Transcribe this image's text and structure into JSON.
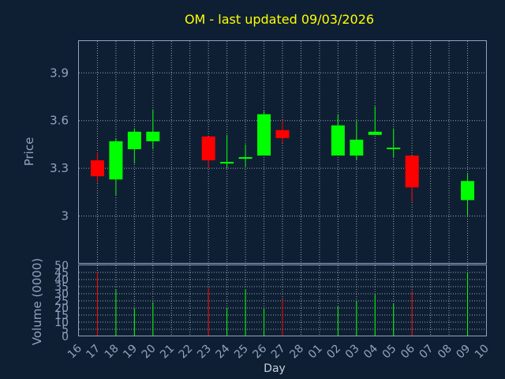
{
  "chart_data": {
    "type": "candlestick",
    "title": "OM - last updated 09/03/2026",
    "ylabel": "Price",
    "volume_label": "Volume (0000)",
    "xlabel": "Day",
    "ylim": [
      2.7,
      4.1
    ],
    "yticks": [
      3,
      3.3,
      3.6,
      3.9
    ],
    "ytick_labels": [
      "3",
      "3.3",
      "3.6",
      "3.9"
    ],
    "volume_ylim": [
      0,
      50
    ],
    "volume_ticks": [
      0,
      5,
      10,
      15,
      20,
      25,
      30,
      35,
      40,
      45,
      50
    ],
    "x_labels": [
      "16",
      "17",
      "18",
      "19",
      "20",
      "21",
      "22",
      "23",
      "24",
      "25",
      "26",
      "27",
      "28",
      "01",
      "02",
      "03",
      "04",
      "05",
      "06",
      "07",
      "08",
      "09",
      "10"
    ],
    "up_color": "#00ff00",
    "down_color": "#ff0000",
    "candles": [
      {
        "i": 1,
        "open": 3.35,
        "high": 3.4,
        "low": 3.21,
        "close": 3.25,
        "volume": 45
      },
      {
        "i": 2,
        "open": 3.23,
        "high": 3.49,
        "low": 3.13,
        "close": 3.47,
        "volume": 33
      },
      {
        "i": 3,
        "open": 3.42,
        "high": 3.55,
        "low": 3.33,
        "close": 3.53,
        "volume": 20
      },
      {
        "i": 4,
        "open": 3.47,
        "high": 3.67,
        "low": 3.42,
        "close": 3.53,
        "volume": 24
      },
      {
        "i": 7,
        "open": 3.5,
        "high": 3.5,
        "low": 3.3,
        "close": 3.35,
        "volume": 34
      },
      {
        "i": 8,
        "open": 3.33,
        "high": 3.51,
        "low": 3.3,
        "close": 3.34,
        "volume": 20
      },
      {
        "i": 9,
        "open": 3.36,
        "high": 3.45,
        "low": 3.31,
        "close": 3.37,
        "volume": 33
      },
      {
        "i": 10,
        "open": 3.38,
        "high": 3.66,
        "low": 3.38,
        "close": 3.64,
        "volume": 20
      },
      {
        "i": 11,
        "open": 3.54,
        "high": 3.6,
        "low": 3.46,
        "close": 3.49,
        "volume": 26
      },
      {
        "i": 14,
        "open": 3.38,
        "high": 3.64,
        "low": 3.38,
        "close": 3.57,
        "volume": 21
      },
      {
        "i": 15,
        "open": 3.38,
        "high": 3.6,
        "low": 3.35,
        "close": 3.48,
        "volume": 25
      },
      {
        "i": 16,
        "open": 3.51,
        "high": 3.69,
        "low": 3.51,
        "close": 3.53,
        "volume": 30
      },
      {
        "i": 17,
        "open": 3.42,
        "high": 3.55,
        "low": 3.37,
        "close": 3.43,
        "volume": 23
      },
      {
        "i": 18,
        "open": 3.38,
        "high": 3.38,
        "low": 3.09,
        "close": 3.18,
        "volume": 32
      },
      {
        "i": 21,
        "open": 3.1,
        "high": 3.27,
        "low": 3.0,
        "close": 3.22,
        "volume": 45
      }
    ]
  }
}
